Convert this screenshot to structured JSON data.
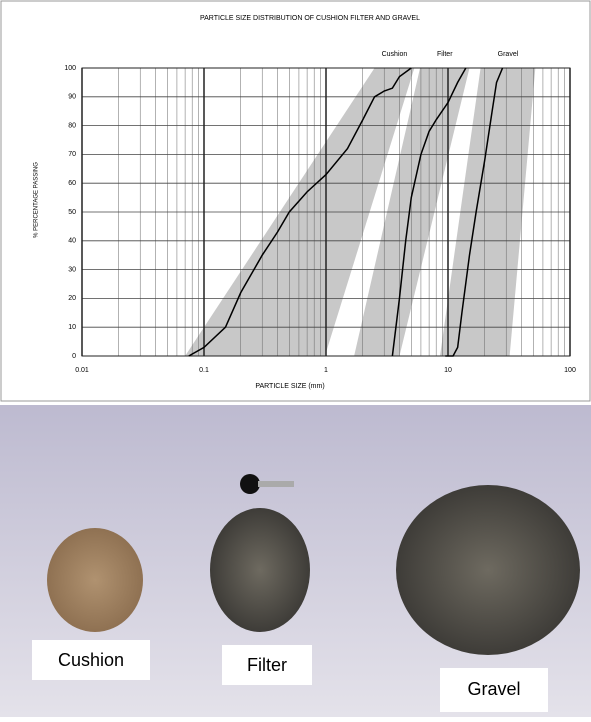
{
  "chart_data": {
    "type": "line",
    "title": "PARTICLE SIZE DISTRIBUTION OF CUSHION FILTER AND GRAVEL",
    "x_label": "PARTICLE SIZE (mm)",
    "y_label": "% PERCENTAGE PASSING",
    "x_scale": "log",
    "xlim": [
      0.01,
      100
    ],
    "xticks": [
      0.01,
      0.1,
      1,
      10,
      100
    ],
    "ylim": [
      0,
      100
    ],
    "yticks": [
      0,
      10,
      20,
      30,
      40,
      50,
      60,
      70,
      80,
      90,
      100
    ],
    "grid": true,
    "series": [
      {
        "name": "Cushion",
        "color": "#000000",
        "band_color": "#c8c8c8",
        "x": [
          0.075,
          0.1,
          0.15,
          0.2,
          0.3,
          0.4,
          0.5,
          0.7,
          1,
          1.5,
          2,
          2.5,
          3,
          3.5,
          4,
          5
        ],
        "y": [
          0,
          3,
          10,
          22,
          35,
          43,
          50,
          57,
          63,
          72,
          82,
          90,
          92,
          93,
          97,
          100
        ],
        "band_x": [
          0.07,
          2.5,
          5.3,
          0.98
        ],
        "band_y": [
          0,
          100,
          100,
          0
        ]
      },
      {
        "name": "Filter",
        "color": "#000000",
        "band_color": "#c8c8c8",
        "x": [
          3.5,
          4,
          4.5,
          5,
          6,
          7,
          8,
          10,
          12,
          14
        ],
        "y": [
          0,
          20,
          40,
          55,
          70,
          78,
          82,
          88,
          95,
          100
        ],
        "band_x": [
          1.7,
          5.9,
          15,
          4.0
        ],
        "band_y": [
          0,
          100,
          100,
          0
        ]
      },
      {
        "name": "Gravel",
        "color": "#000000",
        "band_color": "#c8c8c8",
        "x": [
          9.5,
          11,
          12,
          13,
          15,
          17,
          20,
          23,
          25,
          28
        ],
        "y": [
          0,
          0,
          3,
          15,
          35,
          50,
          68,
          85,
          95,
          100
        ],
        "band_x": [
          8.6,
          18.5,
          52,
          32
        ],
        "band_y": [
          0,
          100,
          100,
          0
        ]
      }
    ]
  },
  "photo": {
    "labels": [
      "Cushion",
      "Filter",
      "Gravel"
    ]
  }
}
